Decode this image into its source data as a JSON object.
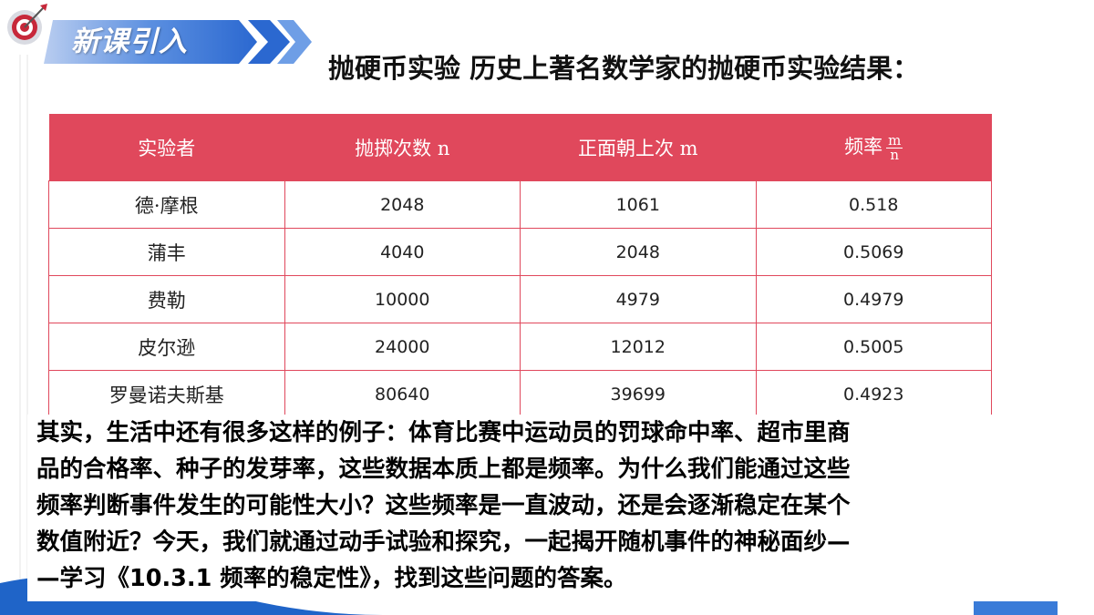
{
  "header": {
    "badge": "新课引入",
    "title": "抛硬币实验 历史上著名数学家的抛硬币实验结果："
  },
  "table": {
    "columns": [
      "实验者",
      "抛掷次数 n",
      "正面朝上次 m",
      "频率"
    ],
    "rate_fraction": {
      "numerator": "m",
      "denominator": "n"
    },
    "rows": [
      [
        "德·摩根",
        2048,
        1061,
        0.518
      ],
      [
        "蒲丰",
        4040,
        2048,
        0.5069
      ],
      [
        "费勒",
        10000,
        4979,
        0.4979
      ],
      [
        "皮尔逊",
        24000,
        12012,
        0.5005
      ],
      [
        "罗曼诺夫斯基",
        80640,
        39699,
        0.4923
      ]
    ]
  },
  "paragraph": {
    "lines": [
      "其实，生活中还有很多这样的例子：体育比赛中运动员的罚球命中率、超市里商",
      "品的合格率、种子的发芽率，这些数据本质上都是频率。为什么我们能通过这些",
      "频率判断事件发生的可能性大小？这些频率是一直波动，还是会逐渐稳定在某个",
      "数值附近？今天，我们就通过动手试验和探究，一起揭开随机事件的神秘面纱—",
      "—学习《10.3.1 频率的稳定性》，找到这些问题的答案。"
    ]
  }
}
